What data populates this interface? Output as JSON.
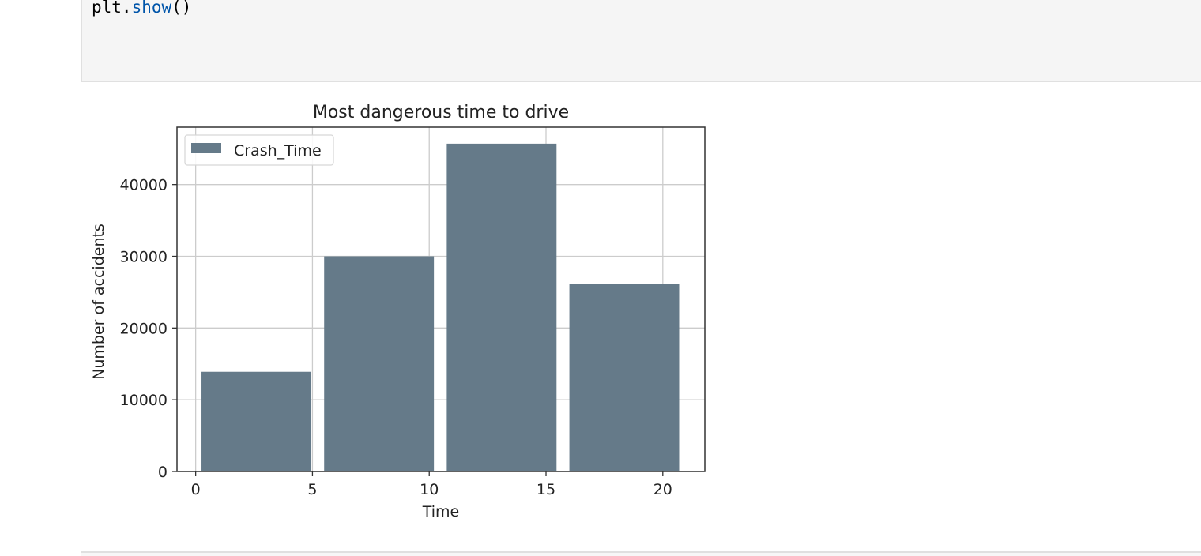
{
  "code": {
    "prefix": "plt.",
    "func": "show",
    "suffix": "()"
  },
  "colors": {
    "bar": "#657a89",
    "grid": "#cccccc",
    "axis": "#333333"
  },
  "chart_data": {
    "type": "bar",
    "title": "Most dangerous time to drive",
    "xlabel": "Time",
    "ylabel": "Number of accidents",
    "legend": {
      "label": "Crash_Time",
      "placement": "top-left"
    },
    "grid": true,
    "xlim": [
      -0.8,
      21.8
    ],
    "ylim": [
      0,
      48000
    ],
    "xticks": [
      0,
      5,
      10,
      15,
      20
    ],
    "yticks": [
      0,
      10000,
      20000,
      30000,
      40000
    ],
    "bars": [
      {
        "x_start": 0.25,
        "x_end": 4.95,
        "value": 13900
      },
      {
        "x_start": 5.5,
        "x_end": 10.2,
        "value": 30000
      },
      {
        "x_start": 10.75,
        "x_end": 15.45,
        "value": 45700
      },
      {
        "x_start": 16.0,
        "x_end": 20.7,
        "value": 26100
      }
    ]
  }
}
